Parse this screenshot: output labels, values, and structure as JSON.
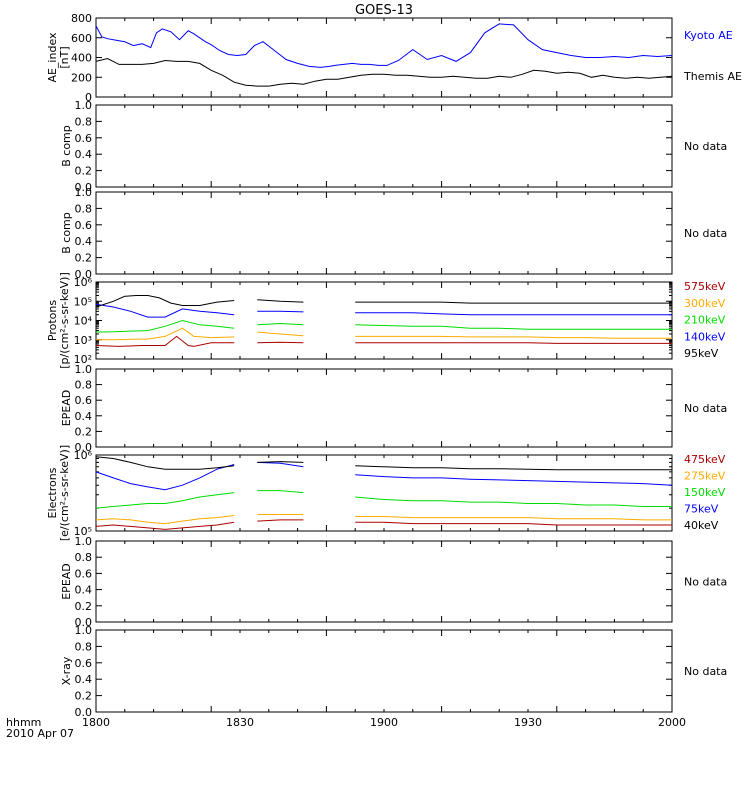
{
  "title": "GOES-13",
  "time_axis": {
    "ticks": [
      "1800",
      "1830",
      "1900",
      "1930",
      "2000"
    ],
    "label_line1": "hhmm",
    "label_line2": "2010 Apr 07"
  },
  "chart_data": [
    {
      "type": "line",
      "ylabel_line1": "AE_index",
      "ylabel_line2": "[nT]",
      "ylim": [
        0,
        800
      ],
      "yticks": [
        "0",
        "200",
        "400",
        "600",
        "800"
      ],
      "series": [
        {
          "name": "Kyoto AE",
          "color": "#0000ff",
          "x": [
            0,
            2,
            4,
            7,
            10,
            13,
            16,
            19,
            21,
            23,
            26,
            29,
            32,
            34,
            36,
            38,
            40,
            43,
            46,
            49,
            52,
            55,
            58,
            62,
            66,
            70,
            74,
            78,
            81,
            83,
            86,
            89,
            92,
            95,
            98,
            101,
            105,
            110,
            115,
            120,
            125,
            130,
            135,
            140,
            145,
            150,
            155,
            160,
            165,
            170,
            175,
            180,
            185,
            190,
            195,
            200
          ],
          "y": [
            720,
            610,
            590,
            575,
            560,
            520,
            540,
            500,
            650,
            690,
            660,
            580,
            670,
            640,
            600,
            560,
            530,
            470,
            430,
            420,
            430,
            520,
            560,
            470,
            380,
            340,
            310,
            300,
            310,
            320,
            330,
            340,
            330,
            330,
            320,
            320,
            370,
            480,
            380,
            420,
            360,
            450,
            650,
            740,
            730,
            580,
            480,
            450,
            420,
            400,
            400,
            410,
            400,
            420,
            410,
            420
          ]
        },
        {
          "name": "Themis AE",
          "color": "#000000",
          "x": [
            0,
            4,
            8,
            12,
            16,
            20,
            24,
            28,
            32,
            36,
            40,
            44,
            48,
            52,
            56,
            60,
            64,
            68,
            72,
            76,
            80,
            84,
            88,
            92,
            96,
            100,
            104,
            108,
            112,
            116,
            120,
            124,
            128,
            132,
            136,
            140,
            144,
            148,
            152,
            156,
            160,
            164,
            168,
            172,
            176,
            180,
            184,
            188,
            192,
            196,
            200
          ],
          "y": [
            360,
            390,
            330,
            330,
            330,
            340,
            370,
            360,
            360,
            340,
            270,
            220,
            150,
            120,
            110,
            110,
            130,
            140,
            130,
            160,
            180,
            180,
            200,
            220,
            230,
            230,
            220,
            220,
            210,
            200,
            200,
            210,
            200,
            190,
            190,
            210,
            200,
            230,
            270,
            260,
            240,
            250,
            240,
            200,
            220,
            200,
            190,
            200,
            190,
            200,
            210
          ]
        }
      ]
    },
    {
      "type": "line",
      "ylabel": "B comp",
      "ylim": [
        0,
        1
      ],
      "yticks": [
        "0.0",
        "0.2",
        "0.4",
        "0.6",
        "0.8",
        "1.0"
      ],
      "note": "No data",
      "series": []
    },
    {
      "type": "line",
      "ylabel": "B comp",
      "ylim": [
        0,
        1
      ],
      "yticks": [
        "0.0",
        "0.2",
        "0.4",
        "0.6",
        "0.8",
        "1.0"
      ],
      "note": "No data",
      "series": []
    },
    {
      "type": "line",
      "ylabel_line1": "Protons",
      "ylabel_line2": "[p/(cm²-s-sr-keV)]",
      "ylog": true,
      "ylim": [
        100,
        1000000
      ],
      "yticks": [
        "10²",
        "10³",
        "10⁴",
        "10⁵",
        "10⁶"
      ],
      "gaps": [
        [
          53,
          56
        ],
        [
          73,
          81
        ]
      ],
      "series": [
        {
          "name": "575keV",
          "color": "#aa0000",
          "x": [
            0,
            8,
            16,
            24,
            28,
            32,
            34,
            40,
            48,
            56,
            64,
            72,
            80,
            90,
            100,
            110,
            120,
            130,
            140,
            150,
            160,
            170,
            180,
            190,
            200
          ],
          "y": [
            500,
            450,
            500,
            500,
            1500,
            500,
            450,
            700,
            700,
            700,
            750,
            700,
            700,
            700,
            700,
            700,
            700,
            700,
            700,
            700,
            650,
            650,
            650,
            650,
            650
          ]
        },
        {
          "name": "300keV",
          "color": "#ffaa00",
          "x": [
            0,
            6,
            12,
            18,
            24,
            30,
            34,
            40,
            48,
            56,
            64,
            72,
            80,
            90,
            100,
            110,
            120,
            130,
            140,
            150,
            160,
            170,
            180,
            190,
            200
          ],
          "y": [
            1000,
            1000,
            1050,
            1100,
            1500,
            4000,
            1500,
            1300,
            1400,
            2500,
            2000,
            1600,
            1500,
            1500,
            1500,
            1500,
            1500,
            1400,
            1400,
            1400,
            1300,
            1300,
            1200,
            1200,
            1200
          ]
        },
        {
          "name": "210keV",
          "color": "#00dd00",
          "x": [
            0,
            6,
            12,
            18,
            24,
            30,
            36,
            42,
            48,
            56,
            64,
            72,
            80,
            90,
            100,
            110,
            120,
            130,
            140,
            150,
            160,
            170,
            180,
            190,
            200
          ],
          "y": [
            2500,
            2600,
            2800,
            3000,
            5000,
            10000,
            6000,
            5000,
            4000,
            6000,
            7000,
            6000,
            6000,
            6000,
            5500,
            5000,
            5000,
            4000,
            4000,
            3500,
            3500,
            3500,
            3500,
            3500,
            3500
          ]
        },
        {
          "name": "140keV",
          "color": "#0000ff",
          "x": [
            0,
            6,
            12,
            18,
            24,
            30,
            36,
            42,
            48,
            56,
            64,
            72,
            80,
            90,
            100,
            110,
            120,
            130,
            140,
            150,
            160,
            170,
            180,
            190,
            200
          ],
          "y": [
            70000,
            50000,
            30000,
            15000,
            15000,
            40000,
            30000,
            25000,
            20000,
            30000,
            30000,
            28000,
            28000,
            25000,
            25000,
            25000,
            22000,
            20000,
            20000,
            20000,
            20000,
            20000,
            20000,
            20000,
            20000
          ]
        },
        {
          "name": "95keV",
          "color": "#000000",
          "x": [
            0,
            6,
            10,
            14,
            18,
            22,
            26,
            30,
            36,
            42,
            48,
            56,
            64,
            72,
            80,
            90,
            100,
            110,
            120,
            130,
            140,
            150,
            160,
            170,
            180,
            190,
            200
          ],
          "y": [
            50000,
            100000,
            180000,
            200000,
            200000,
            150000,
            80000,
            60000,
            60000,
            90000,
            110000,
            120000,
            100000,
            90000,
            90000,
            90000,
            90000,
            90000,
            90000,
            80000,
            80000,
            80000,
            80000,
            80000,
            80000,
            80000,
            80000
          ]
        }
      ]
    },
    {
      "type": "line",
      "ylabel": "EPEAD",
      "ylim": [
        0,
        1
      ],
      "yticks": [
        "0.0",
        "0.2",
        "0.4",
        "0.6",
        "0.8",
        "1.0"
      ],
      "note": "No data",
      "series": []
    },
    {
      "type": "line",
      "ylabel_line1": "Electrons",
      "ylabel_line2": "[e/(cm²-s-sr-keV)]",
      "ylog": true,
      "ylim": [
        100000,
        1000000
      ],
      "yticks": [
        "10⁵",
        "10⁶"
      ],
      "gaps": [
        [
          53,
          56
        ],
        [
          73,
          81
        ]
      ],
      "series": [
        {
          "name": "475keV",
          "color": "#aa0000",
          "x": [
            0,
            6,
            12,
            18,
            24,
            30,
            36,
            42,
            48,
            56,
            64,
            72,
            80,
            90,
            100,
            110,
            120,
            130,
            140,
            150,
            160,
            170,
            180,
            190,
            200
          ],
          "y": [
            115000,
            120000,
            115000,
            110000,
            105000,
            110000,
            115000,
            120000,
            130000,
            135000,
            140000,
            140000,
            135000,
            130000,
            130000,
            125000,
            125000,
            125000,
            125000,
            125000,
            120000,
            120000,
            120000,
            120000,
            120000
          ]
        },
        {
          "name": "275keV",
          "color": "#ffaa00",
          "x": [
            0,
            6,
            12,
            18,
            24,
            30,
            36,
            42,
            48,
            56,
            64,
            72,
            80,
            90,
            100,
            110,
            120,
            130,
            140,
            150,
            160,
            170,
            180,
            190,
            200
          ],
          "y": [
            140000,
            145000,
            140000,
            130000,
            125000,
            135000,
            145000,
            150000,
            160000,
            165000,
            165000,
            165000,
            160000,
            155000,
            155000,
            150000,
            150000,
            150000,
            150000,
            150000,
            145000,
            145000,
            145000,
            140000,
            140000
          ]
        },
        {
          "name": "150keV",
          "color": "#00dd00",
          "x": [
            0,
            6,
            12,
            18,
            24,
            30,
            36,
            42,
            48,
            56,
            64,
            72,
            80,
            90,
            100,
            110,
            120,
            130,
            140,
            150,
            160,
            170,
            180,
            190,
            200
          ],
          "y": [
            200000,
            210000,
            220000,
            230000,
            230000,
            250000,
            280000,
            300000,
            320000,
            340000,
            340000,
            320000,
            300000,
            280000,
            260000,
            250000,
            250000,
            240000,
            240000,
            230000,
            230000,
            220000,
            220000,
            210000,
            210000
          ]
        },
        {
          "name": "75keV",
          "color": "#0000ff",
          "x": [
            0,
            6,
            12,
            18,
            24,
            30,
            36,
            42,
            48,
            56,
            64,
            72,
            80,
            90,
            100,
            110,
            120,
            130,
            140,
            150,
            160,
            170,
            180,
            190,
            200
          ],
          "y": [
            600000,
            500000,
            420000,
            380000,
            350000,
            400000,
            500000,
            650000,
            750000,
            800000,
            780000,
            700000,
            600000,
            550000,
            520000,
            500000,
            500000,
            480000,
            470000,
            460000,
            450000,
            440000,
            430000,
            420000,
            400000
          ]
        },
        {
          "name": "40keV",
          "color": "#000000",
          "x": [
            0,
            6,
            12,
            18,
            24,
            30,
            36,
            42,
            48,
            56,
            64,
            72,
            80,
            90,
            100,
            110,
            120,
            130,
            140,
            150,
            160,
            170,
            180,
            190,
            200
          ],
          "y": [
            950000,
            900000,
            800000,
            700000,
            650000,
            650000,
            650000,
            680000,
            720000,
            800000,
            820000,
            800000,
            760000,
            720000,
            700000,
            680000,
            680000,
            660000,
            660000,
            650000,
            640000,
            640000,
            640000,
            640000,
            640000
          ]
        }
      ]
    },
    {
      "type": "line",
      "ylabel": "EPEAD",
      "ylim": [
        0,
        1
      ],
      "yticks": [
        "0.0",
        "0.2",
        "0.4",
        "0.6",
        "0.8",
        "1.0"
      ],
      "note": "No data",
      "series": []
    },
    {
      "type": "line",
      "ylabel": "X-ray",
      "ylim": [
        0,
        1
      ],
      "yticks": [
        "0.0",
        "0.2",
        "0.4",
        "0.6",
        "0.8",
        "1.0"
      ],
      "note": "No data",
      "series": []
    }
  ]
}
